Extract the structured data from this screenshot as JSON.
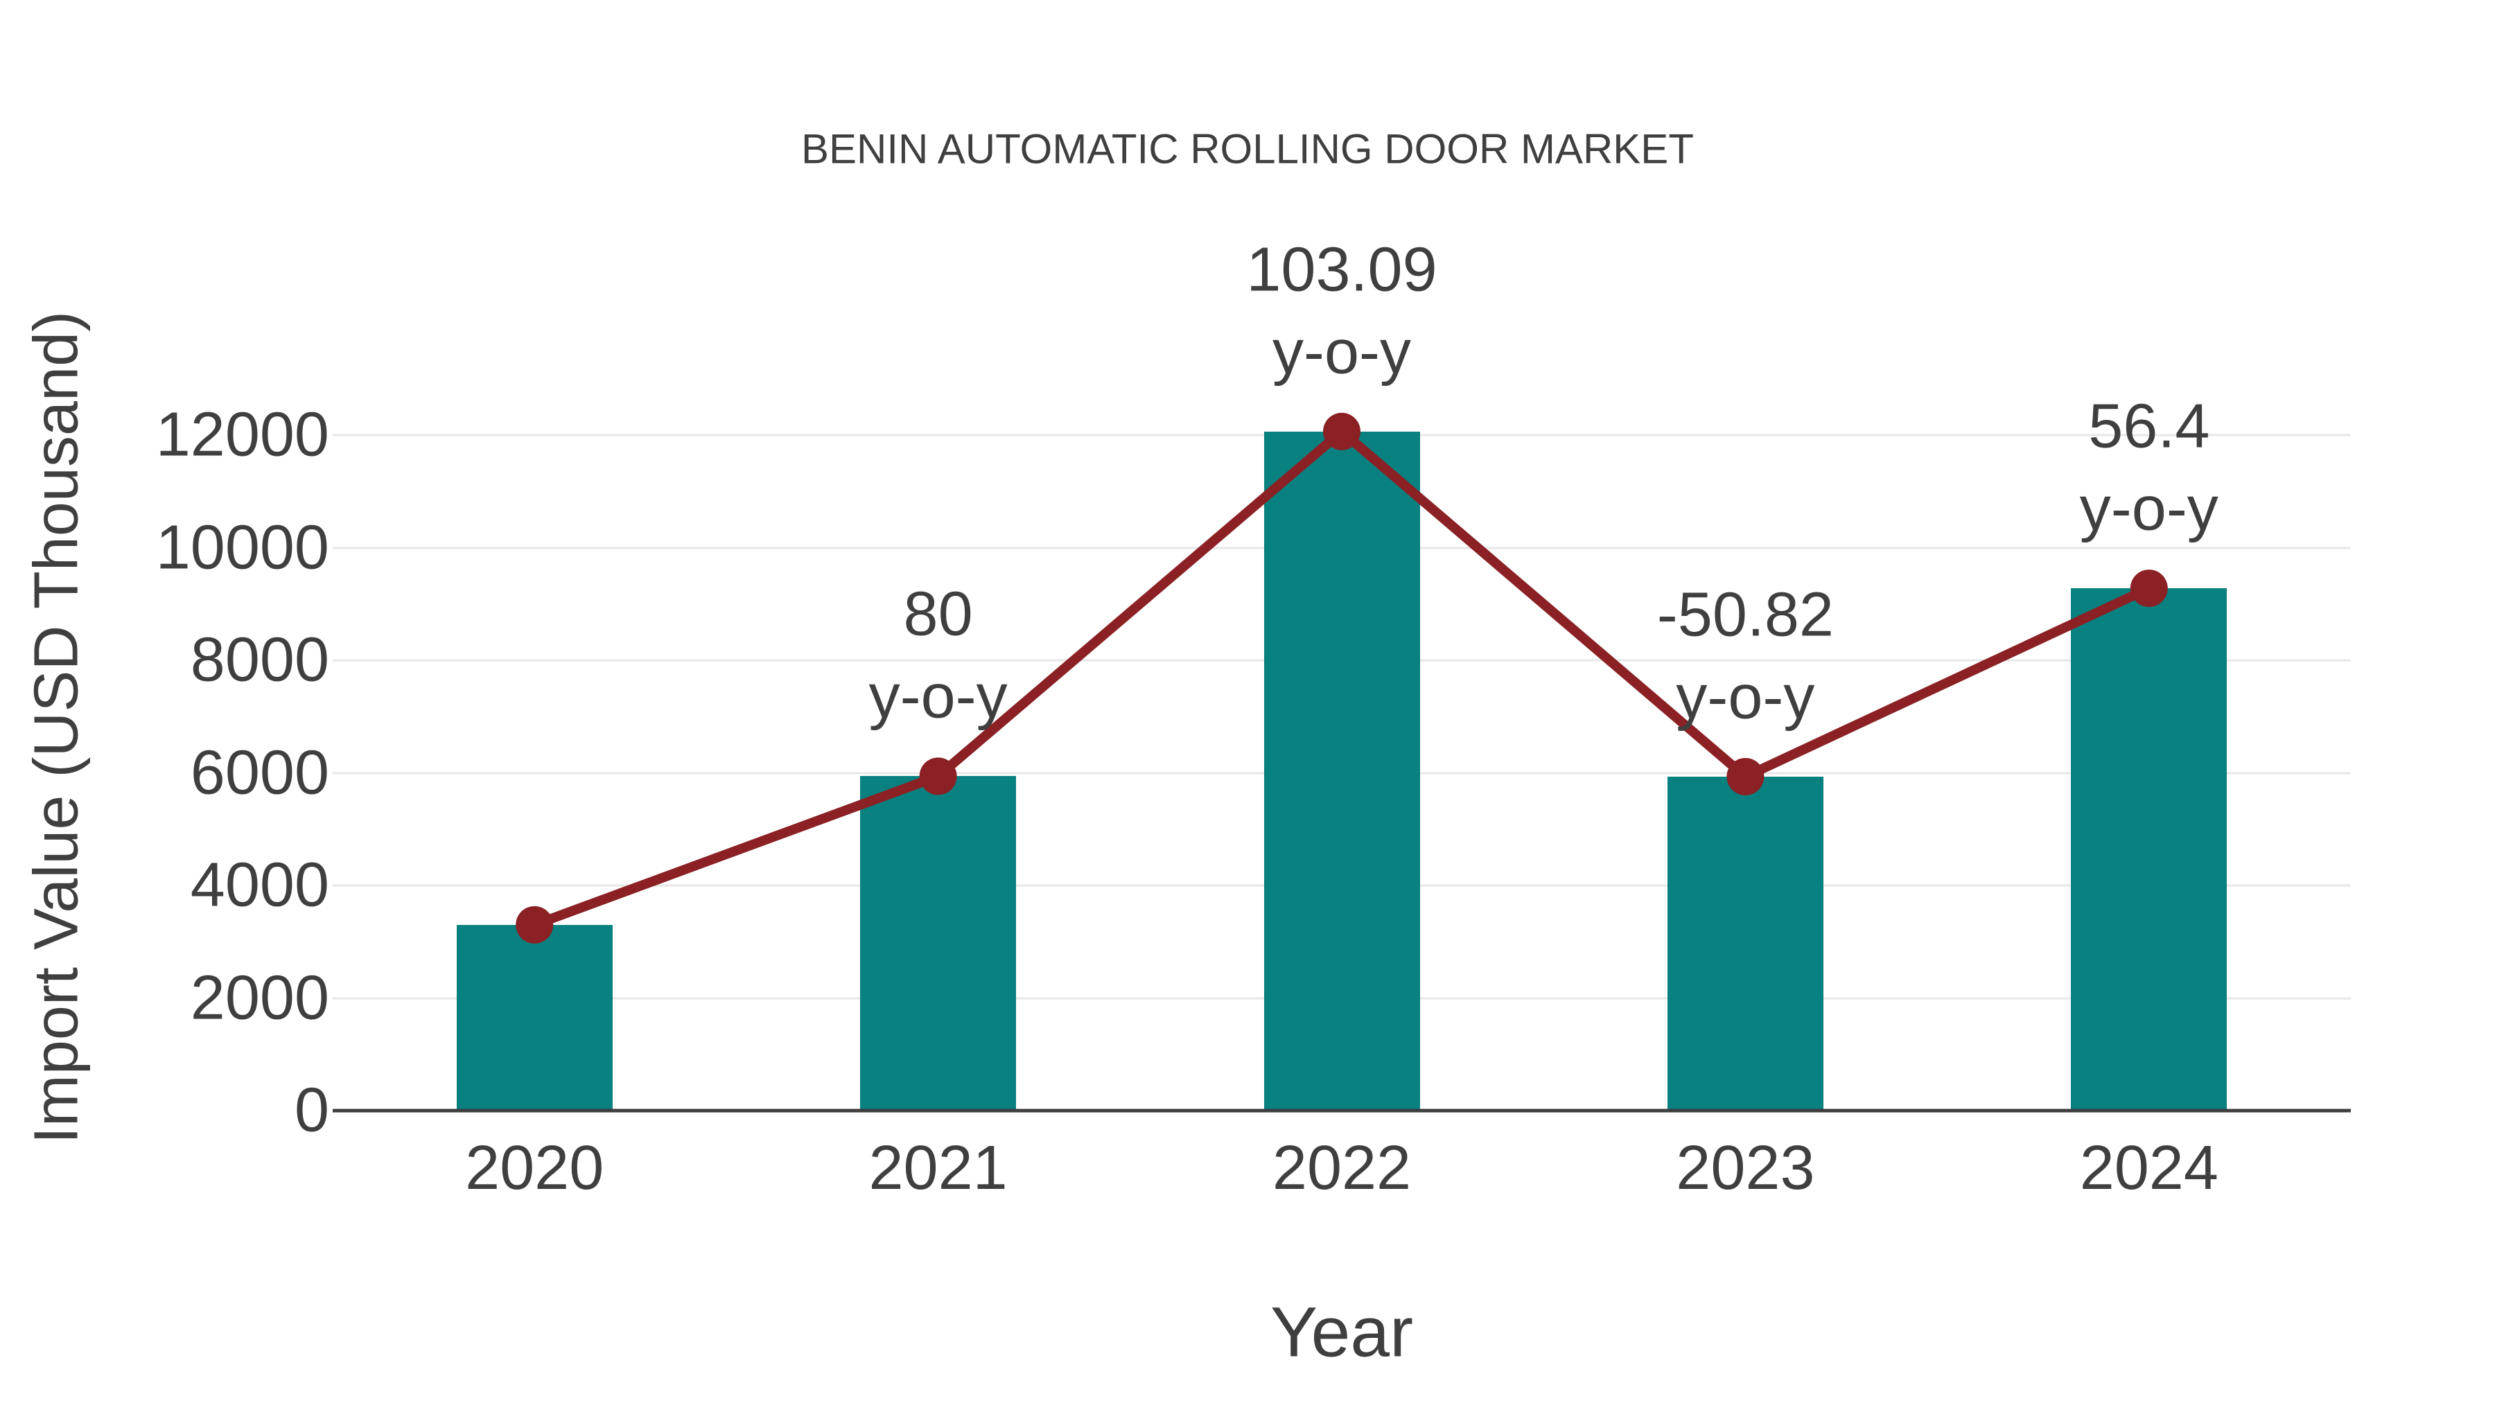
{
  "title": "BENIN AUTOMATIC ROLLING DOOR MARKET",
  "axes": {
    "x_label": "Year",
    "y_label": "Import Value (USD Thousand)"
  },
  "chart_data": {
    "type": "bar",
    "categories": [
      "2020",
      "2021",
      "2022",
      "2023",
      "2024"
    ],
    "series": [
      {
        "name": "Import Value",
        "type": "bar",
        "values": [
          3300,
          5940,
          12064,
          5933,
          9279
        ]
      },
      {
        "name": "y-o-y growth (%)",
        "type": "line",
        "values": [
          3300,
          5940,
          12064,
          5933,
          9279
        ],
        "point_labels": [
          null,
          "80",
          "103.09",
          "-50.82",
          "56.4"
        ],
        "label_suffix": "y-o-y"
      }
    ],
    "title": "BENIN AUTOMATIC ROLLING DOOR MARKET",
    "xlabel": "Year",
    "ylabel": "Import Value (USD Thousand)",
    "ylim": [
      0,
      12000
    ],
    "yticks": [
      0,
      2000,
      4000,
      6000,
      8000,
      10000,
      12000
    ],
    "grid": "horizontal",
    "legend": "none"
  },
  "colors": {
    "bar": "#088180",
    "line": "#8b2124",
    "marker": "#8b2124",
    "text": "#3f3f3f",
    "grid": "#e7e7e7",
    "axis": "#3d3d3d",
    "background": "#ffffff"
  }
}
